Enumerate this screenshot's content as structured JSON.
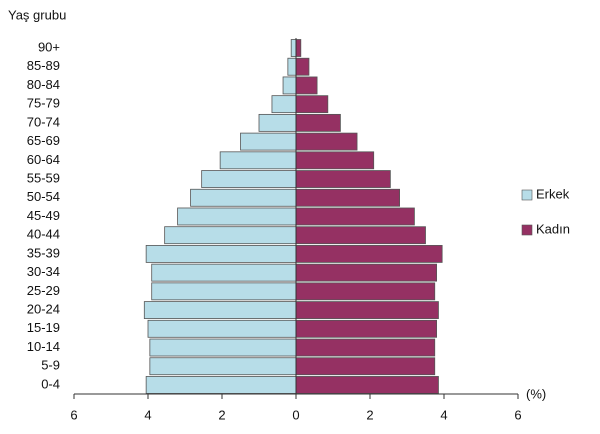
{
  "chart_data": {
    "type": "pyramid",
    "y_label": "Yaş grubu",
    "x_label": "(%)",
    "categories": [
      "90+",
      "85-89",
      "80-84",
      "75-79",
      "70-74",
      "65-69",
      "60-64",
      "55-59",
      "50-54",
      "45-49",
      "40-44",
      "35-39",
      "30-34",
      "25-29",
      "20-24",
      "15-19",
      "10-14",
      "5-9",
      "0-4"
    ],
    "series": [
      {
        "name": "Erkek",
        "color": "#b7dde8",
        "side": "left",
        "values": [
          0.13,
          0.22,
          0.35,
          0.65,
          1.0,
          1.5,
          2.05,
          2.55,
          2.85,
          3.2,
          3.55,
          4.05,
          3.9,
          3.9,
          4.1,
          4.0,
          3.95,
          3.95,
          4.05
        ]
      },
      {
        "name": "Kadın",
        "color": "#953163",
        "side": "right",
        "values": [
          0.13,
          0.35,
          0.57,
          0.86,
          1.2,
          1.65,
          2.1,
          2.55,
          2.8,
          3.2,
          3.5,
          3.95,
          3.8,
          3.75,
          3.85,
          3.8,
          3.75,
          3.75,
          3.85
        ]
      }
    ],
    "xlim": [
      -6,
      6
    ],
    "xticks": [
      {
        "value": -6,
        "label": "6"
      },
      {
        "value": -4,
        "label": "4"
      },
      {
        "value": -2,
        "label": "2"
      },
      0,
      2,
      4,
      6
    ]
  }
}
